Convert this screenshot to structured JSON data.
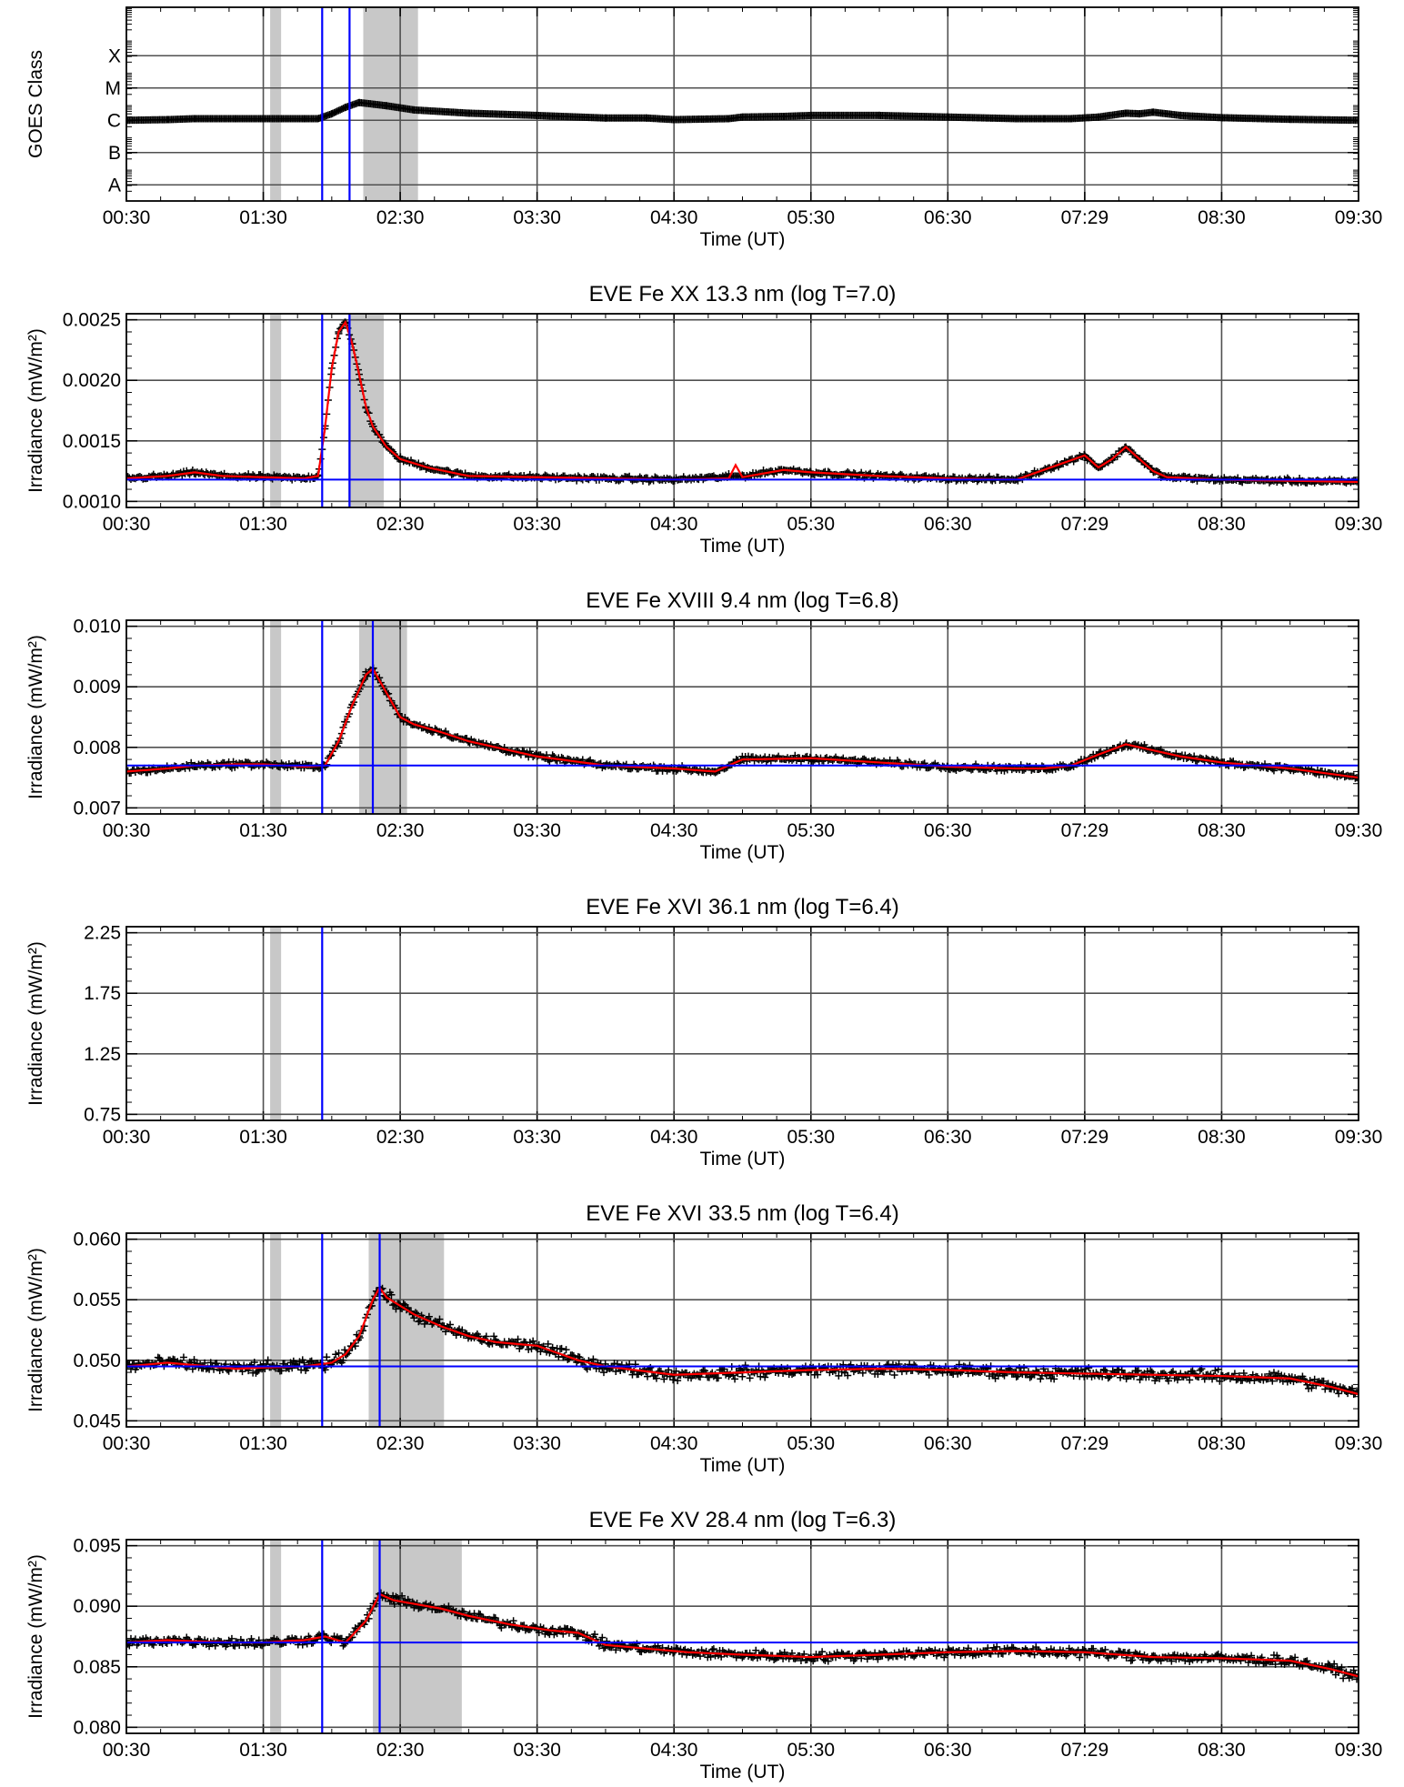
{
  "chart_data": [
    {
      "type": "scatter",
      "title": "",
      "xlabel": "Time (UT)",
      "ylabel": "GOES Class",
      "x_tick_labels": [
        "00:30",
        "01:30",
        "02:30",
        "03:30",
        "04:30",
        "05:30",
        "06:30",
        "07:29",
        "08:30",
        "09:30"
      ],
      "xlim": [
        0.5,
        9.5
      ],
      "y_scale": "log",
      "ylim": [
        -9,
        -3
      ],
      "y_ticks": [
        {
          "value": -8.5,
          "label": "A"
        },
        {
          "value": -7.5,
          "label": "B"
        },
        {
          "value": -6.5,
          "label": "C"
        },
        {
          "value": -5.5,
          "label": "M"
        },
        {
          "value": -4.5,
          "label": "X"
        }
      ],
      "grid": true,
      "shaded_intervals": [
        [
          1.55,
          1.63
        ],
        [
          2.23,
          2.63
        ]
      ],
      "vertical_lines": [
        1.93,
        2.13
      ],
      "series": [
        {
          "color": "#000000",
          "marker": "+",
          "x": [
            0.5,
            0.8,
            1.0,
            1.3,
            1.5,
            1.8,
            1.9,
            2.0,
            2.1,
            2.2,
            2.4,
            2.6,
            3.0,
            3.5,
            4.0,
            4.3,
            4.5,
            4.9,
            5.0,
            5.3,
            5.5,
            6.0,
            6.5,
            7.0,
            7.2,
            7.4,
            7.6,
            7.8,
            7.9,
            8.0,
            8.2,
            8.5,
            9.0,
            9.5
          ],
          "y": [
            -6.5,
            -6.48,
            -6.45,
            -6.45,
            -6.45,
            -6.45,
            -6.45,
            -6.3,
            -6.1,
            -5.95,
            -6.05,
            -6.18,
            -6.28,
            -6.35,
            -6.43,
            -6.43,
            -6.48,
            -6.45,
            -6.4,
            -6.38,
            -6.35,
            -6.35,
            -6.4,
            -6.45,
            -6.45,
            -6.45,
            -6.4,
            -6.28,
            -6.3,
            -6.25,
            -6.35,
            -6.42,
            -6.47,
            -6.5
          ]
        }
      ]
    },
    {
      "type": "scatter",
      "title": "EVE Fe XX 13.3 nm (log T=7.0)",
      "xlabel": "Time (UT)",
      "ylabel": "Irradiance (mW/m²)",
      "x_tick_labels": [
        "00:30",
        "01:30",
        "02:30",
        "03:30",
        "04:30",
        "05:30",
        "06:30",
        "07:29",
        "08:30",
        "09:30"
      ],
      "xlim": [
        0.5,
        9.5
      ],
      "ylim": [
        0.00095,
        0.00255
      ],
      "y_ticks": [
        {
          "value": 0.001,
          "label": "0.0010"
        },
        {
          "value": 0.0015,
          "label": "0.0015"
        },
        {
          "value": 0.002,
          "label": "0.0020"
        },
        {
          "value": 0.0025,
          "label": "0.0025"
        }
      ],
      "grid": true,
      "shaded_intervals": [
        [
          1.55,
          1.63
        ],
        [
          2.12,
          2.38
        ]
      ],
      "vertical_lines": [
        1.93,
        2.13
      ],
      "horizontal_lines": [
        0.00118
      ],
      "series": [
        {
          "color": "#000000",
          "marker": "+",
          "scatter_noise": 2e-05,
          "x": [
            0.5,
            0.8,
            1.0,
            1.2,
            1.5,
            1.8,
            1.9,
            1.95,
            2.0,
            2.05,
            2.1,
            2.15,
            2.2,
            2.25,
            2.3,
            2.4,
            2.5,
            2.7,
            3.0,
            3.5,
            4.0,
            4.5,
            5.0,
            5.3,
            5.5,
            6.0,
            6.5,
            7.0,
            7.3,
            7.5,
            7.6,
            7.7,
            7.8,
            7.9,
            8.0,
            8.1,
            8.3,
            8.5,
            9.0,
            9.5
          ],
          "y": [
            0.00119,
            0.00121,
            0.00124,
            0.00121,
            0.0012,
            0.00119,
            0.00121,
            0.0016,
            0.0021,
            0.0024,
            0.00248,
            0.0023,
            0.00205,
            0.00178,
            0.00162,
            0.00145,
            0.00135,
            0.00128,
            0.00121,
            0.0012,
            0.00119,
            0.00118,
            0.00121,
            0.00126,
            0.00124,
            0.00121,
            0.00119,
            0.00118,
            0.0013,
            0.00138,
            0.00128,
            0.00135,
            0.00145,
            0.00135,
            0.00125,
            0.0012,
            0.00119,
            0.00118,
            0.00117,
            0.00116
          ]
        },
        {
          "color": "#ff0000",
          "marker": "line",
          "x": [
            0.5,
            0.8,
            1.0,
            1.2,
            1.5,
            1.8,
            1.9,
            1.95,
            2.0,
            2.05,
            2.1,
            2.15,
            2.2,
            2.25,
            2.3,
            2.4,
            2.5,
            2.7,
            3.0,
            3.5,
            4.0,
            4.5,
            4.9,
            4.95,
            5.0,
            5.3,
            5.5,
            6.0,
            6.5,
            7.0,
            7.3,
            7.5,
            7.6,
            7.7,
            7.8,
            7.9,
            8.0,
            8.1,
            8.3,
            8.5,
            9.0,
            9.5
          ],
          "y": [
            0.00119,
            0.00121,
            0.00124,
            0.00121,
            0.0012,
            0.00119,
            0.00121,
            0.0016,
            0.0021,
            0.0024,
            0.00248,
            0.0023,
            0.00205,
            0.00178,
            0.00162,
            0.00145,
            0.00135,
            0.00128,
            0.00121,
            0.0012,
            0.00119,
            0.00118,
            0.00119,
            0.0013,
            0.0012,
            0.00126,
            0.00124,
            0.00121,
            0.00119,
            0.00118,
            0.0013,
            0.00138,
            0.00128,
            0.00135,
            0.00145,
            0.00135,
            0.00125,
            0.0012,
            0.00119,
            0.00118,
            0.00117,
            0.00116
          ]
        }
      ]
    },
    {
      "type": "scatter",
      "title": "EVE Fe XVIII 9.4 nm (log T=6.8)",
      "xlabel": "Time (UT)",
      "ylabel": "Irradiance (mW/m²)",
      "x_tick_labels": [
        "00:30",
        "01:30",
        "02:30",
        "03:30",
        "04:30",
        "05:30",
        "06:30",
        "07:29",
        "08:30",
        "09:30"
      ],
      "xlim": [
        0.5,
        9.5
      ],
      "ylim": [
        0.0069,
        0.0101
      ],
      "y_ticks": [
        {
          "value": 0.007,
          "label": "0.007"
        },
        {
          "value": 0.008,
          "label": "0.008"
        },
        {
          "value": 0.009,
          "label": "0.009"
        },
        {
          "value": 0.01,
          "label": "0.010"
        }
      ],
      "grid": true,
      "shaded_intervals": [
        [
          1.55,
          1.63
        ],
        [
          2.2,
          2.55
        ]
      ],
      "vertical_lines": [
        1.93,
        2.3
      ],
      "horizontal_lines": [
        0.0077
      ],
      "series": [
        {
          "color": "#000000",
          "marker": "+",
          "scatter_noise": 5e-05,
          "x": [
            0.5,
            0.8,
            1.0,
            1.3,
            1.5,
            1.8,
            1.95,
            2.05,
            2.15,
            2.25,
            2.3,
            2.4,
            2.5,
            2.6,
            2.8,
            3.0,
            3.5,
            4.0,
            4.5,
            4.8,
            5.0,
            5.5,
            6.0,
            6.5,
            7.0,
            7.2,
            7.4,
            7.6,
            7.8,
            8.0,
            8.2,
            8.5,
            9.0,
            9.5
          ],
          "y": [
            0.0076,
            0.00765,
            0.0077,
            0.00772,
            0.00772,
            0.00768,
            0.0077,
            0.0081,
            0.0087,
            0.0092,
            0.0093,
            0.0089,
            0.0085,
            0.00838,
            0.00825,
            0.0081,
            0.00785,
            0.0077,
            0.00765,
            0.0076,
            0.0078,
            0.00782,
            0.00775,
            0.00768,
            0.00765,
            0.00765,
            0.0077,
            0.00788,
            0.00805,
            0.00795,
            0.00785,
            0.00775,
            0.00765,
            0.0075
          ]
        },
        {
          "color": "#ff0000",
          "marker": "line",
          "x": [
            0.5,
            0.8,
            1.0,
            1.3,
            1.5,
            1.8,
            1.95,
            2.05,
            2.15,
            2.25,
            2.3,
            2.4,
            2.5,
            2.6,
            2.8,
            3.0,
            3.5,
            4.0,
            4.5,
            4.8,
            5.0,
            5.5,
            6.0,
            6.5,
            7.0,
            7.2,
            7.4,
            7.6,
            7.8,
            8.0,
            8.2,
            8.5,
            9.0,
            9.5
          ],
          "y": [
            0.0076,
            0.00765,
            0.0077,
            0.00772,
            0.00772,
            0.00768,
            0.0077,
            0.0081,
            0.0087,
            0.0092,
            0.0093,
            0.0089,
            0.0085,
            0.00838,
            0.00825,
            0.0081,
            0.00785,
            0.0077,
            0.00765,
            0.0076,
            0.0078,
            0.00782,
            0.00775,
            0.00768,
            0.00765,
            0.00765,
            0.0077,
            0.00788,
            0.00805,
            0.00795,
            0.00785,
            0.00775,
            0.00765,
            0.0075
          ]
        }
      ]
    },
    {
      "type": "scatter",
      "title": "EVE Fe XVI 36.1 nm (log T=6.4)",
      "xlabel": "Time (UT)",
      "ylabel": "Irradiance (mW/m²)",
      "x_tick_labels": [
        "00:30",
        "01:30",
        "02:30",
        "03:30",
        "04:30",
        "05:30",
        "06:30",
        "07:29",
        "08:30",
        "09:30"
      ],
      "xlim": [
        0.5,
        9.5
      ],
      "ylim": [
        0.7,
        2.3
      ],
      "y_ticks": [
        {
          "value": 0.75,
          "label": "0.75"
        },
        {
          "value": 1.25,
          "label": "1.25"
        },
        {
          "value": 1.75,
          "label": "1.75"
        },
        {
          "value": 2.25,
          "label": "2.25"
        }
      ],
      "grid": true,
      "shaded_intervals": [
        [
          1.55,
          1.63
        ]
      ],
      "vertical_lines": [
        1.93
      ],
      "series": []
    },
    {
      "type": "scatter",
      "title": "EVE Fe XVI 33.5 nm (log T=6.4)",
      "xlabel": "Time (UT)",
      "ylabel": "Irradiance (mW/m²)",
      "x_tick_labels": [
        "00:30",
        "01:30",
        "02:30",
        "03:30",
        "04:30",
        "05:30",
        "06:30",
        "07:29",
        "08:30",
        "09:30"
      ],
      "xlim": [
        0.5,
        9.5
      ],
      "ylim": [
        0.0445,
        0.0605
      ],
      "y_ticks": [
        {
          "value": 0.045,
          "label": "0.045"
        },
        {
          "value": 0.05,
          "label": "0.050"
        },
        {
          "value": 0.055,
          "label": "0.055"
        },
        {
          "value": 0.06,
          "label": "0.060"
        }
      ],
      "grid": true,
      "shaded_intervals": [
        [
          1.55,
          1.63
        ],
        [
          2.27,
          2.82
        ]
      ],
      "vertical_lines": [
        1.93,
        2.35
      ],
      "horizontal_lines": [
        0.0495
      ],
      "series": [
        {
          "color": "#000000",
          "marker": "+",
          "scatter_noise": 0.0005,
          "x": [
            0.5,
            0.8,
            1.0,
            1.3,
            1.5,
            1.8,
            2.0,
            2.1,
            2.2,
            2.3,
            2.35,
            2.4,
            2.5,
            2.6,
            2.8,
            3.0,
            3.2,
            3.4,
            3.5,
            3.6,
            3.8,
            4.0,
            4.5,
            5.0,
            5.5,
            6.0,
            6.5,
            7.0,
            7.5,
            8.0,
            8.5,
            9.0,
            9.3,
            9.5
          ],
          "y": [
            0.0495,
            0.0498,
            0.0496,
            0.0493,
            0.0494,
            0.0495,
            0.0498,
            0.0505,
            0.052,
            0.055,
            0.056,
            0.0552,
            0.0545,
            0.0538,
            0.0528,
            0.052,
            0.0515,
            0.0513,
            0.0512,
            0.0508,
            0.05,
            0.0495,
            0.0488,
            0.049,
            0.0492,
            0.0493,
            0.0492,
            0.049,
            0.0489,
            0.0488,
            0.0487,
            0.0485,
            0.0478,
            0.0472
          ]
        },
        {
          "color": "#ff0000",
          "marker": "line",
          "x": [
            0.5,
            0.8,
            1.0,
            1.3,
            1.5,
            1.8,
            2.0,
            2.1,
            2.2,
            2.3,
            2.35,
            2.4,
            2.5,
            2.6,
            2.8,
            3.0,
            3.2,
            3.4,
            3.5,
            3.6,
            3.8,
            4.0,
            4.5,
            5.0,
            5.5,
            6.0,
            6.5,
            7.0,
            7.5,
            8.0,
            8.5,
            9.0,
            9.3,
            9.5
          ],
          "y": [
            0.0495,
            0.0498,
            0.0496,
            0.0493,
            0.0494,
            0.0495,
            0.0498,
            0.0505,
            0.052,
            0.055,
            0.056,
            0.0552,
            0.0545,
            0.0538,
            0.0528,
            0.052,
            0.0515,
            0.0513,
            0.0512,
            0.0508,
            0.05,
            0.0495,
            0.0488,
            0.049,
            0.0492,
            0.0493,
            0.0492,
            0.049,
            0.0489,
            0.0488,
            0.0487,
            0.0485,
            0.0478,
            0.0472
          ]
        }
      ]
    },
    {
      "type": "scatter",
      "title": "EVE Fe XV 28.4 nm (log T=6.3)",
      "xlabel": "Time (UT)",
      "ylabel": "Irradiance (mW/m²)",
      "x_tick_labels": [
        "00:30",
        "01:30",
        "02:30",
        "03:30",
        "04:30",
        "05:30",
        "06:30",
        "07:29",
        "08:30",
        "09:30"
      ],
      "xlim": [
        0.5,
        9.5
      ],
      "ylim": [
        0.0795,
        0.0955
      ],
      "y_ticks": [
        {
          "value": 0.08,
          "label": "0.080"
        },
        {
          "value": 0.085,
          "label": "0.085"
        },
        {
          "value": 0.09,
          "label": "0.090"
        },
        {
          "value": 0.095,
          "label": "0.095"
        }
      ],
      "grid": true,
      "shaded_intervals": [
        [
          1.55,
          1.63
        ],
        [
          2.3,
          2.95
        ]
      ],
      "vertical_lines": [
        1.93,
        2.35
      ],
      "horizontal_lines": [
        0.087
      ],
      "series": [
        {
          "color": "#000000",
          "marker": "+",
          "scatter_noise": 0.0004,
          "x": [
            0.5,
            0.8,
            1.0,
            1.3,
            1.5,
            1.8,
            1.95,
            2.1,
            2.25,
            2.35,
            2.45,
            2.6,
            2.8,
            3.0,
            3.3,
            3.6,
            3.8,
            4.0,
            4.3,
            4.6,
            5.0,
            5.5,
            6.0,
            6.5,
            7.0,
            7.5,
            8.0,
            8.5,
            9.0,
            9.3,
            9.5
          ],
          "y": [
            0.087,
            0.0872,
            0.0871,
            0.087,
            0.087,
            0.0872,
            0.0875,
            0.087,
            0.0888,
            0.091,
            0.0905,
            0.0902,
            0.0898,
            0.0892,
            0.0885,
            0.088,
            0.0878,
            0.0868,
            0.0865,
            0.0862,
            0.086,
            0.0858,
            0.086,
            0.0862,
            0.0863,
            0.0862,
            0.0858,
            0.0857,
            0.0855,
            0.0848,
            0.0842
          ]
        },
        {
          "color": "#ff0000",
          "marker": "line",
          "x": [
            0.5,
            0.8,
            1.0,
            1.3,
            1.5,
            1.8,
            1.95,
            2.1,
            2.25,
            2.35,
            2.45,
            2.6,
            2.8,
            3.0,
            3.3,
            3.6,
            3.8,
            4.0,
            4.3,
            4.6,
            5.0,
            5.5,
            6.0,
            6.5,
            7.0,
            7.5,
            8.0,
            8.5,
            9.0,
            9.3,
            9.5
          ],
          "y": [
            0.087,
            0.0872,
            0.0871,
            0.087,
            0.087,
            0.0872,
            0.0875,
            0.087,
            0.0888,
            0.091,
            0.0905,
            0.0902,
            0.0898,
            0.0892,
            0.0885,
            0.088,
            0.0878,
            0.0868,
            0.0865,
            0.0862,
            0.086,
            0.0858,
            0.086,
            0.0862,
            0.0863,
            0.0862,
            0.0858,
            0.0857,
            0.0855,
            0.0848,
            0.0842
          ]
        }
      ]
    }
  ]
}
